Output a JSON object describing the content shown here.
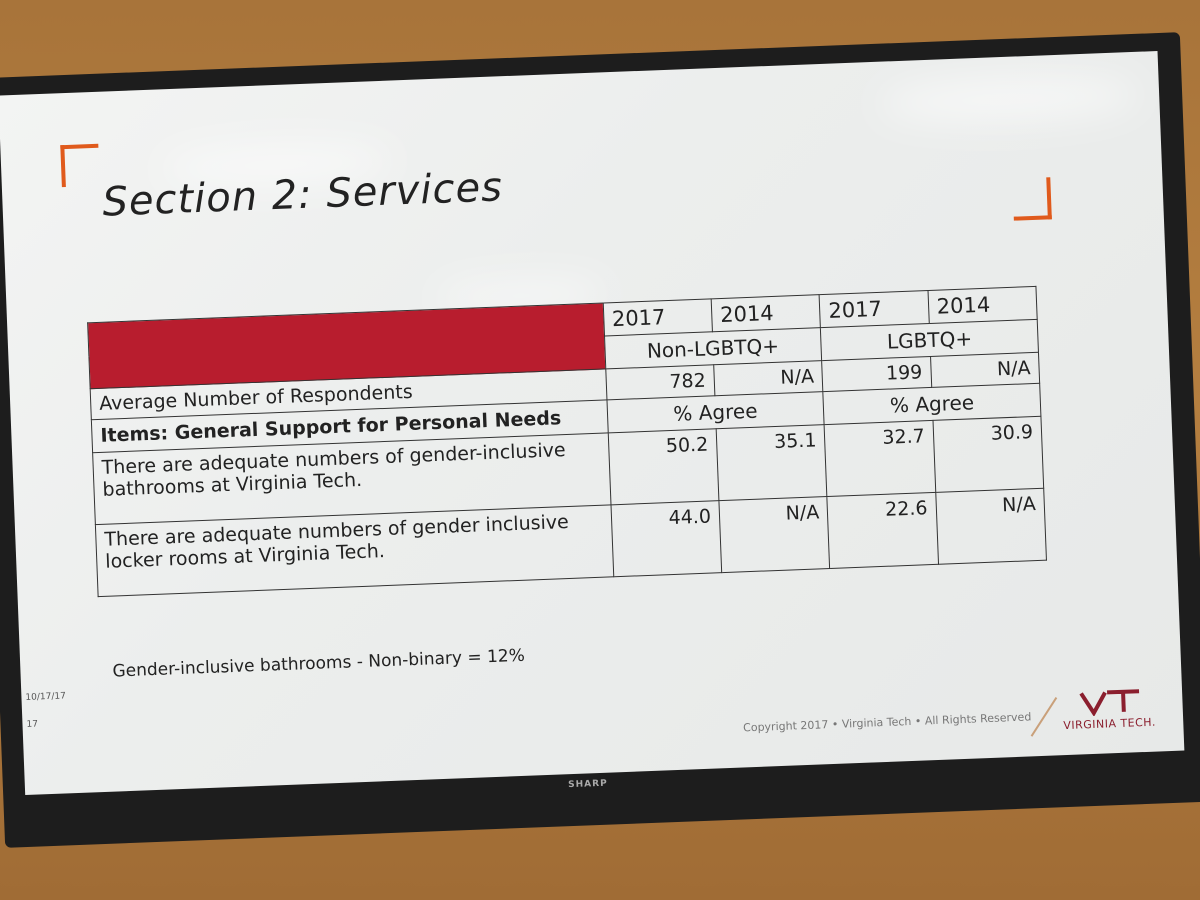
{
  "slide": {
    "title": "Section 2: Services",
    "table": {
      "years": [
        "2017",
        "2014",
        "2017",
        "2014"
      ],
      "groups": [
        "Non-LGBTQ+",
        "LGBTQ+"
      ],
      "respondents_row": {
        "label": "Average Number of Respondents",
        "values": [
          "782",
          "N/A",
          "199",
          "N/A"
        ]
      },
      "items_row": {
        "label": "Items: General Support for Personal Needs",
        "agree": [
          "% Agree",
          "% Agree"
        ]
      },
      "rows": [
        {
          "label_line1": "There are adequate numbers of gender-inclusive",
          "label_line2": "bathrooms at Virginia Tech.",
          "values": [
            "50.2",
            "35.1",
            "32.7",
            "30.9"
          ]
        },
        {
          "label_line1": "There are adequate numbers of gender inclusive",
          "label_line2": "locker rooms at Virginia Tech.",
          "values": [
            "44.0",
            "N/A",
            "22.6",
            "N/A"
          ]
        }
      ]
    },
    "footnote": "Gender-inclusive bathrooms - Non-binary = 12%",
    "date": "10/17/17",
    "slide_number": "17",
    "copyright": "Copyright 2017 • Virginia Tech • All Rights Reserved",
    "logo_text": "VIRGINIA TECH.",
    "accent_color": "#e05a1c",
    "header_color": "#b81d2e"
  },
  "tv": {
    "brand": "SHARP"
  }
}
